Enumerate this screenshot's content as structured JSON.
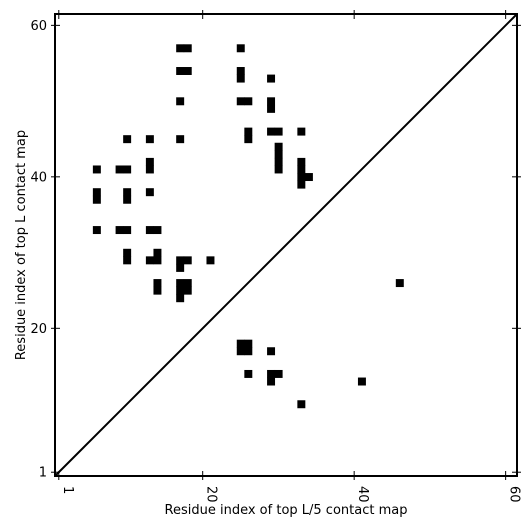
{
  "chart_data": {
    "type": "heatmap",
    "title": "",
    "xlabel": "Residue index of top L/5 contact map",
    "ylabel": "Residue index of top L contact map",
    "xlim": [
      0.5,
      61.5
    ],
    "ylim": [
      0.5,
      61.5
    ],
    "x_ticks": [
      1,
      20,
      40,
      60
    ],
    "y_ticks": [
      1,
      20,
      40,
      60
    ],
    "x_tick_labels": [
      "1",
      "20",
      "40",
      "60"
    ],
    "y_tick_labels": [
      "1",
      "20",
      "40",
      "60"
    ],
    "x_tick_rotation": -90,
    "grid": false,
    "diagonal_line": true,
    "cell_color": "#000000",
    "background_color": "#ffffff",
    "cells": [
      {
        "x": 17,
        "y": 57
      },
      {
        "x": 18,
        "y": 57
      },
      {
        "x": 25,
        "y": 57
      },
      {
        "x": 17,
        "y": 54
      },
      {
        "x": 18,
        "y": 54
      },
      {
        "x": 25,
        "y": 54
      },
      {
        "x": 25,
        "y": 53
      },
      {
        "x": 29,
        "y": 53
      },
      {
        "x": 17,
        "y": 50
      },
      {
        "x": 25,
        "y": 50
      },
      {
        "x": 26,
        "y": 50
      },
      {
        "x": 29,
        "y": 50
      },
      {
        "x": 29,
        "y": 49
      },
      {
        "x": 10,
        "y": 45
      },
      {
        "x": 13,
        "y": 45
      },
      {
        "x": 17,
        "y": 45
      },
      {
        "x": 26,
        "y": 46
      },
      {
        "x": 26,
        "y": 45
      },
      {
        "x": 29,
        "y": 46
      },
      {
        "x": 30,
        "y": 46
      },
      {
        "x": 33,
        "y": 46
      },
      {
        "x": 30,
        "y": 44
      },
      {
        "x": 30,
        "y": 43
      },
      {
        "x": 30,
        "y": 42
      },
      {
        "x": 30,
        "y": 41
      },
      {
        "x": 13,
        "y": 42
      },
      {
        "x": 13,
        "y": 41
      },
      {
        "x": 6,
        "y": 41
      },
      {
        "x": 9,
        "y": 41
      },
      {
        "x": 10,
        "y": 41
      },
      {
        "x": 33,
        "y": 42
      },
      {
        "x": 33,
        "y": 41
      },
      {
        "x": 33,
        "y": 40
      },
      {
        "x": 33,
        "y": 39
      },
      {
        "x": 34,
        "y": 40
      },
      {
        "x": 6,
        "y": 38
      },
      {
        "x": 6,
        "y": 37
      },
      {
        "x": 10,
        "y": 38
      },
      {
        "x": 10,
        "y": 37
      },
      {
        "x": 13,
        "y": 38
      },
      {
        "x": 6,
        "y": 33
      },
      {
        "x": 9,
        "y": 33
      },
      {
        "x": 10,
        "y": 33
      },
      {
        "x": 13,
        "y": 33
      },
      {
        "x": 14,
        "y": 33
      },
      {
        "x": 10,
        "y": 30
      },
      {
        "x": 10,
        "y": 29
      },
      {
        "x": 14,
        "y": 30
      },
      {
        "x": 13,
        "y": 29
      },
      {
        "x": 14,
        "y": 29
      },
      {
        "x": 17,
        "y": 29
      },
      {
        "x": 18,
        "y": 29
      },
      {
        "x": 17,
        "y": 28
      },
      {
        "x": 21,
        "y": 29
      },
      {
        "x": 14,
        "y": 26
      },
      {
        "x": 14,
        "y": 25
      },
      {
        "x": 17,
        "y": 26
      },
      {
        "x": 18,
        "y": 26
      },
      {
        "x": 17,
        "y": 25
      },
      {
        "x": 18,
        "y": 25
      },
      {
        "x": 17,
        "y": 24
      },
      {
        "x": 46,
        "y": 26
      },
      {
        "x": 25,
        "y": 18
      },
      {
        "x": 26,
        "y": 18
      },
      {
        "x": 25,
        "y": 17
      },
      {
        "x": 26,
        "y": 17
      },
      {
        "x": 29,
        "y": 17
      },
      {
        "x": 26,
        "y": 14
      },
      {
        "x": 29,
        "y": 14
      },
      {
        "x": 30,
        "y": 14
      },
      {
        "x": 29,
        "y": 13
      },
      {
        "x": 41,
        "y": 13
      },
      {
        "x": 33,
        "y": 10
      }
    ]
  }
}
